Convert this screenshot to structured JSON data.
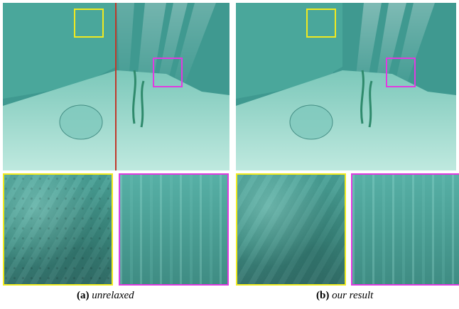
{
  "figure": {
    "panels": [
      {
        "label": "(a)",
        "caption": "unrelaxed"
      },
      {
        "label": "(b)",
        "caption": "our result"
      }
    ],
    "colors": {
      "highlight_yellow": "#f1ea1f",
      "highlight_magenta": "#e03be0",
      "split_line_red": "#c0392b",
      "water": "#4aa89d"
    }
  }
}
